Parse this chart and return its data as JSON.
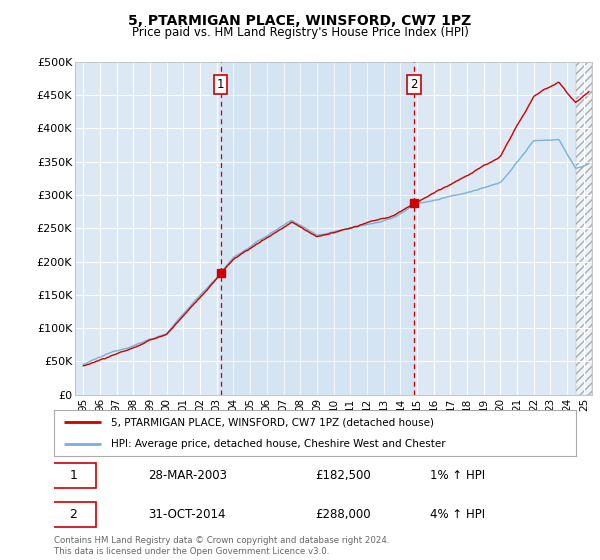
{
  "title": "5, PTARMIGAN PLACE, WINSFORD, CW7 1PZ",
  "subtitle": "Price paid vs. HM Land Registry's House Price Index (HPI)",
  "ylabel_ticks": [
    "£0",
    "£50K",
    "£100K",
    "£150K",
    "£200K",
    "£250K",
    "£300K",
    "£350K",
    "£400K",
    "£450K",
    "£500K"
  ],
  "ytick_values": [
    0,
    50000,
    100000,
    150000,
    200000,
    250000,
    300000,
    350000,
    400000,
    450000,
    500000
  ],
  "xlim_start": 1994.5,
  "xlim_end": 2025.5,
  "ylim_min": 0,
  "ylim_max": 500000,
  "bg_color": "#dce9f5",
  "hpi_line_color": "#7ab0d4",
  "price_line_color": "#cc0000",
  "marker1_date_label": "28-MAR-2003",
  "marker1_price_label": "£182,500",
  "marker1_hpi_label": "1% ↑ HPI",
  "marker1_year": 2003.23,
  "marker1_price": 182500,
  "marker2_date_label": "31-OCT-2014",
  "marker2_price_label": "£288,000",
  "marker2_hpi_label": "4% ↑ HPI",
  "marker2_year": 2014.83,
  "marker2_price": 288000,
  "legend_line1": "5, PTARMIGAN PLACE, WINSFORD, CW7 1PZ (detached house)",
  "legend_line2": "HPI: Average price, detached house, Cheshire West and Chester",
  "footer": "Contains HM Land Registry data © Crown copyright and database right 2024.\nThis data is licensed under the Open Government Licence v3.0.",
  "xtick_years": [
    1995,
    1996,
    1997,
    1998,
    1999,
    2000,
    2001,
    2002,
    2003,
    2004,
    2005,
    2006,
    2007,
    2008,
    2009,
    2010,
    2011,
    2012,
    2013,
    2014,
    2015,
    2016,
    2017,
    2018,
    2019,
    2020,
    2021,
    2022,
    2023,
    2024,
    2025
  ],
  "hatch_start": 2024.5,
  "highlight_x1": 2003.23,
  "highlight_x2": 2014.83
}
